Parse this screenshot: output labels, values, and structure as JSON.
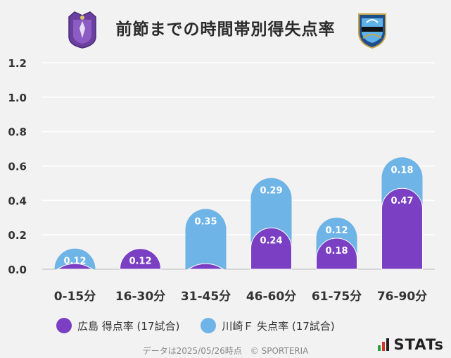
{
  "title": "前節までの時間帯別得失点率",
  "colors": {
    "purple": "#7a3fc2",
    "blue": "#6fb4e6",
    "grid": "#ffffff",
    "axis_text": "#333333"
  },
  "legend": {
    "series1": "広島 得点率 (17試合)",
    "series2": "川崎Ｆ 失点率 (17試合)"
  },
  "footer": "データは2025/05/26時点　© SPORTERIA",
  "stats_logo": "STATs",
  "chart_data": {
    "type": "bar",
    "title": "前節までの時間帯別得失点率",
    "categories": [
      "0-15分",
      "16-30分",
      "31-45分",
      "46-60分",
      "61-75分",
      "76-90分"
    ],
    "y_ticks": [
      "0.0",
      "0.2",
      "0.4",
      "0.6",
      "0.8",
      "1.0",
      "1.2"
    ],
    "ylim": [
      0,
      1.2
    ],
    "grid": true,
    "legend_position": "bottom",
    "series": [
      {
        "name": "広島 得点率 (17試合)",
        "color": "#7a3fc2",
        "values": [
          0,
          0.12,
          0,
          0.24,
          0.18,
          0.47
        ],
        "labels": [
          "",
          "0.12",
          "",
          "0.24",
          "0.18",
          "0.47"
        ]
      },
      {
        "name": "川崎Ｆ 失点率 (17試合)",
        "color": "#6fb4e6",
        "values": [
          0.12,
          0,
          0.35,
          0.29,
          0.12,
          0.18
        ],
        "labels": [
          "0.12",
          "",
          "0.35",
          "0.29",
          "0.12",
          "0.18"
        ]
      }
    ]
  }
}
